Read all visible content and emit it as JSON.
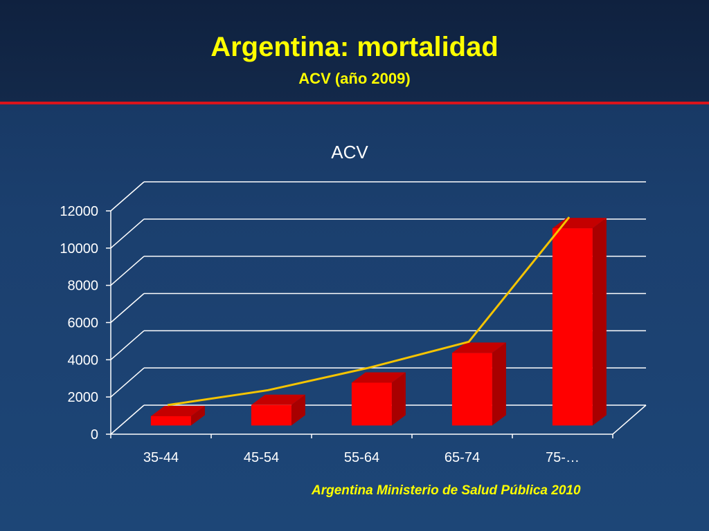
{
  "slide": {
    "title": "Argentina: mortalidad",
    "subtitle": "ACV (año 2009)",
    "source": "Argentina Ministerio de Salud Pública 2010"
  },
  "colors": {
    "title_text": "#ffff00",
    "divider": "#d8141c",
    "bar_front": "#ff0000",
    "bar_top": "#c40000",
    "bar_side": "#a80000",
    "trend_line": "#f5c400",
    "grid": "#ffffff"
  },
  "chart_data": {
    "type": "bar",
    "style": "3d-column",
    "title": "ACV",
    "xlabel": "",
    "ylabel": "",
    "categories": [
      "35-44",
      "45-54",
      "55-64",
      "65-74",
      "75-…"
    ],
    "series": [
      {
        "values": [
          500,
          1100,
          2300,
          3900,
          10600
        ]
      }
    ],
    "trendline": {
      "values": [
        800,
        1600,
        2800,
        4200,
        10900
      ]
    },
    "ylim": [
      0,
      12000
    ],
    "yticks": [
      0,
      2000,
      4000,
      6000,
      8000,
      10000,
      12000
    ],
    "grid": true,
    "legend": "none"
  }
}
